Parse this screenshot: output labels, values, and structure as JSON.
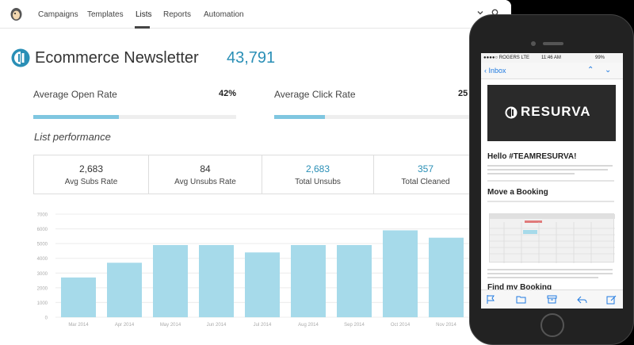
{
  "nav": {
    "tabs": [
      "Campaigns",
      "Templates",
      "Lists",
      "Reports",
      "Automation"
    ],
    "active_tab": "Lists"
  },
  "header": {
    "title": "Ecommerce Newsletter",
    "count": "43,791"
  },
  "rates": {
    "open_label": "Average Open Rate",
    "open_value": "42%",
    "open_fraction": 0.42,
    "click_label": "Average Click Rate",
    "click_value": "25",
    "click_fraction": 0.25
  },
  "section_title": "List performance",
  "stats": [
    {
      "value": "2,683",
      "label": "Avg Subs Rate",
      "highlight": false
    },
    {
      "value": "84",
      "label": "Avg Unsubs Rate",
      "highlight": false
    },
    {
      "value": "2,683",
      "label": "Total Unsubs",
      "highlight": true
    },
    {
      "value": "357",
      "label": "Total Cleaned",
      "highlight": true
    }
  ],
  "chart_data": {
    "type": "bar",
    "categories": [
      "Mar 2014",
      "Apr 2014",
      "May 2014",
      "Jun 2014",
      "Jul 2014",
      "Aug 2014",
      "Sep 2014",
      "Oct 2014",
      "Nov 2014"
    ],
    "values": [
      2700,
      3700,
      4900,
      4900,
      4400,
      4900,
      4900,
      5900,
      5400
    ],
    "yticks": [
      "0",
      "1000",
      "2000",
      "3000",
      "4000",
      "5000",
      "6000",
      "7000"
    ],
    "ylim": [
      0,
      7000
    ],
    "bar_color": "#a6daea",
    "grid": true
  },
  "phone": {
    "carrier": "●●●●○ ROGERS  LTE",
    "time": "11:46 AM",
    "battery": "99%",
    "back_label": "Inbox",
    "brand": "RESURVA",
    "greeting": "Hello #TEAMRESURVA!",
    "section1": "Move a Booking",
    "section2": "Find my Booking"
  },
  "colors": {
    "accent": "#2a8fb6",
    "bar": "#a6daea",
    "progress": "#7fc6e0",
    "ios_blue": "#1f7ae0"
  }
}
